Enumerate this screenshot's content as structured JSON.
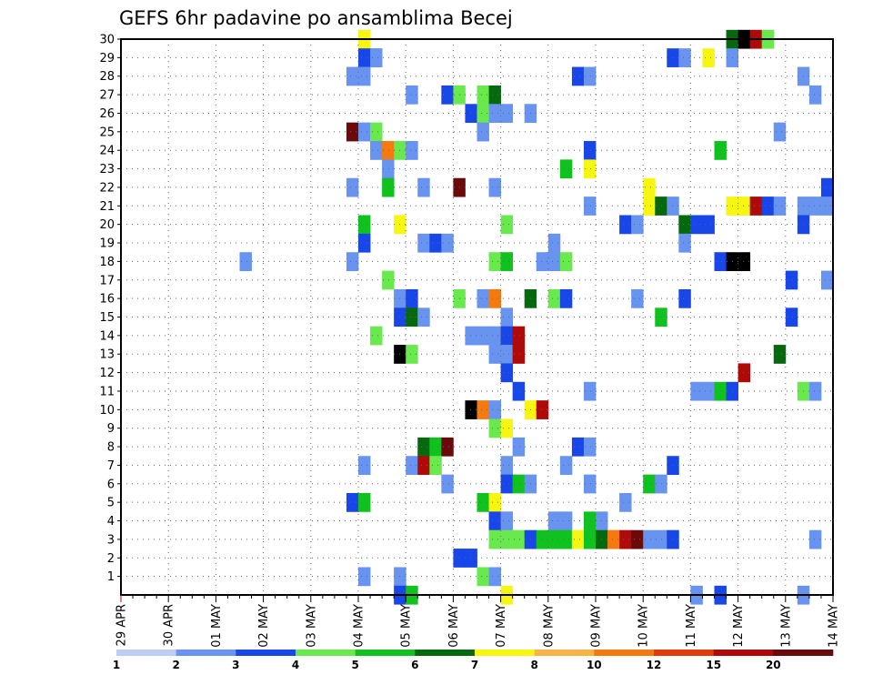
{
  "chart_data": {
    "type": "heatmap",
    "title": "GEFS 6hr padavine po ansamblima Becej",
    "x_labels": [
      "29 APR",
      "30 APR",
      "01 MAY",
      "02 MAY",
      "03 MAY",
      "04 MAY",
      "05 MAY",
      "06 MAY",
      "07 MAY",
      "08 MAY",
      "09 MAY",
      "10 MAY",
      "11 MAY",
      "12 MAY",
      "13 MAY",
      "14 MAY"
    ],
    "y_labels": [
      "1",
      "2",
      "3",
      "4",
      "5",
      "6",
      "7",
      "8",
      "9",
      "10",
      "11",
      "12",
      "13",
      "14",
      "15",
      "16",
      "17",
      "18",
      "19",
      "20",
      "21",
      "22",
      "23",
      "24",
      "25",
      "26",
      "27",
      "28",
      "29",
      "30"
    ],
    "x_unit": "6-hour steps from 29 APR 00Z",
    "xlim": [
      0,
      60
    ],
    "ylim": [
      0,
      30
    ],
    "grid": true,
    "colorbar": {
      "levels": [
        1,
        2,
        3,
        4,
        5,
        6,
        7,
        8,
        10,
        12,
        15,
        20
      ],
      "colors": [
        "#bdcdf6",
        "#6893ee",
        "#1946e6",
        "#6ae94f",
        "#11c120",
        "#06680f",
        "#f6f612",
        "#f6b445",
        "#f57911",
        "#e03a0e",
        "#ae0a0a",
        "#6a0a0a"
      ]
    },
    "cells": [
      [
        20,
        30,
        6
      ],
      [
        21,
        29,
        1
      ],
      [
        51,
        30,
        5
      ],
      [
        52,
        30,
        12
      ],
      [
        53,
        30,
        10
      ],
      [
        54,
        30,
        3
      ],
      [
        20,
        29,
        2
      ],
      [
        21,
        29,
        1
      ],
      [
        46,
        29,
        2
      ],
      [
        47,
        29,
        1
      ],
      [
        49,
        29,
        6
      ],
      [
        51,
        29,
        1
      ],
      [
        19,
        28,
        1
      ],
      [
        20,
        28,
        1
      ],
      [
        38,
        28,
        2
      ],
      [
        39,
        28,
        1
      ],
      [
        57,
        28,
        1
      ],
      [
        24,
        27,
        1
      ],
      [
        27,
        27,
        2
      ],
      [
        28,
        27,
        3
      ],
      [
        30,
        27,
        3
      ],
      [
        31,
        27,
        5
      ],
      [
        58,
        27,
        1
      ],
      [
        29,
        26,
        2
      ],
      [
        30,
        26,
        3
      ],
      [
        31,
        26,
        1
      ],
      [
        32,
        26,
        1
      ],
      [
        34,
        26,
        1
      ],
      [
        19,
        25,
        11
      ],
      [
        20,
        25,
        1
      ],
      [
        21,
        25,
        3
      ],
      [
        30,
        25,
        1
      ],
      [
        55,
        25,
        1
      ],
      [
        21,
        24,
        1
      ],
      [
        22,
        24,
        8
      ],
      [
        23,
        24,
        3
      ],
      [
        24,
        24,
        1
      ],
      [
        39,
        24,
        2
      ],
      [
        50,
        24,
        4
      ],
      [
        22,
        23,
        1
      ],
      [
        37,
        23,
        4
      ],
      [
        39,
        23,
        6
      ],
      [
        19,
        22,
        1
      ],
      [
        22,
        22,
        4
      ],
      [
        25,
        22,
        1
      ],
      [
        28,
        22,
        11
      ],
      [
        31,
        22,
        1
      ],
      [
        44,
        22,
        6
      ],
      [
        59,
        22,
        2
      ],
      [
        39,
        21,
        1
      ],
      [
        44,
        21,
        6
      ],
      [
        45,
        21,
        5
      ],
      [
        46,
        21,
        1
      ],
      [
        51,
        21,
        6
      ],
      [
        52,
        21,
        6
      ],
      [
        53,
        21,
        10
      ],
      [
        54,
        21,
        2
      ],
      [
        55,
        21,
        1
      ],
      [
        57,
        21,
        1
      ],
      [
        58,
        21,
        1
      ],
      [
        59,
        21,
        1
      ],
      [
        20,
        20,
        4
      ],
      [
        23,
        20,
        6
      ],
      [
        32,
        20,
        3
      ],
      [
        42,
        20,
        2
      ],
      [
        43,
        20,
        1
      ],
      [
        47,
        20,
        5
      ],
      [
        48,
        20,
        2
      ],
      [
        49,
        20,
        2
      ],
      [
        57,
        20,
        2
      ],
      [
        20,
        19,
        2
      ],
      [
        25,
        19,
        1
      ],
      [
        26,
        19,
        2
      ],
      [
        27,
        19,
        1
      ],
      [
        36,
        19,
        1
      ],
      [
        47,
        19,
        1
      ],
      [
        10,
        18,
        1
      ],
      [
        19,
        18,
        1
      ],
      [
        31,
        18,
        3
      ],
      [
        32,
        18,
        4
      ],
      [
        35,
        18,
        1
      ],
      [
        36,
        18,
        1
      ],
      [
        37,
        18,
        3
      ],
      [
        50,
        18,
        2
      ],
      [
        51,
        18,
        13
      ],
      [
        52,
        18,
        14
      ],
      [
        22,
        17,
        3
      ],
      [
        56,
        17,
        2
      ],
      [
        59,
        17,
        1
      ],
      [
        23,
        16,
        1
      ],
      [
        24,
        16,
        2
      ],
      [
        28,
        16,
        3
      ],
      [
        30,
        16,
        1
      ],
      [
        31,
        16,
        8
      ],
      [
        34,
        16,
        5
      ],
      [
        36,
        16,
        3
      ],
      [
        37,
        16,
        2
      ],
      [
        43,
        16,
        1
      ],
      [
        47,
        16,
        2
      ],
      [
        23,
        15,
        2
      ],
      [
        24,
        15,
        5
      ],
      [
        25,
        15,
        1
      ],
      [
        32,
        15,
        1
      ],
      [
        45,
        15,
        4
      ],
      [
        56,
        15,
        2
      ],
      [
        21,
        14,
        3
      ],
      [
        29,
        14,
        1
      ],
      [
        30,
        14,
        1
      ],
      [
        31,
        14,
        1
      ],
      [
        32,
        14,
        2
      ],
      [
        33,
        14,
        10
      ],
      [
        23,
        13,
        14
      ],
      [
        24,
        13,
        3
      ],
      [
        31,
        13,
        1
      ],
      [
        32,
        13,
        1
      ],
      [
        33,
        13,
        10
      ],
      [
        55,
        13,
        5
      ],
      [
        32,
        12,
        2
      ],
      [
        52,
        12,
        10
      ],
      [
        33,
        11,
        2
      ],
      [
        39,
        11,
        1
      ],
      [
        48,
        11,
        1
      ],
      [
        49,
        11,
        1
      ],
      [
        50,
        11,
        4
      ],
      [
        51,
        11,
        2
      ],
      [
        57,
        11,
        3
      ],
      [
        58,
        11,
        1
      ],
      [
        29,
        10,
        12
      ],
      [
        30,
        10,
        8
      ],
      [
        31,
        10,
        1
      ],
      [
        34,
        10,
        6
      ],
      [
        35,
        10,
        10
      ],
      [
        31,
        9,
        3
      ],
      [
        32,
        9,
        6
      ],
      [
        25,
        8,
        5
      ],
      [
        26,
        8,
        4
      ],
      [
        27,
        8,
        11
      ],
      [
        33,
        8,
        1
      ],
      [
        38,
        8,
        2
      ],
      [
        39,
        8,
        1
      ],
      [
        20,
        7,
        1
      ],
      [
        24,
        7,
        1
      ],
      [
        25,
        7,
        10
      ],
      [
        26,
        7,
        3
      ],
      [
        32,
        7,
        1
      ],
      [
        37,
        7,
        1
      ],
      [
        46,
        7,
        2
      ],
      [
        27,
        6,
        1
      ],
      [
        32,
        6,
        2
      ],
      [
        33,
        6,
        4
      ],
      [
        34,
        6,
        1
      ],
      [
        39,
        6,
        1
      ],
      [
        44,
        6,
        4
      ],
      [
        45,
        6,
        1
      ],
      [
        19,
        5,
        2
      ],
      [
        20,
        5,
        4
      ],
      [
        30,
        5,
        4
      ],
      [
        31,
        5,
        6
      ],
      [
        42,
        5,
        1
      ],
      [
        31,
        4,
        2
      ],
      [
        32,
        4,
        1
      ],
      [
        36,
        4,
        1
      ],
      [
        37,
        4,
        1
      ],
      [
        39,
        4,
        4
      ],
      [
        40,
        4,
        1
      ],
      [
        31,
        3,
        3
      ],
      [
        32,
        3,
        3
      ],
      [
        33,
        3,
        3
      ],
      [
        34,
        3,
        2
      ],
      [
        35,
        3,
        4
      ],
      [
        36,
        3,
        4
      ],
      [
        37,
        3,
        4
      ],
      [
        38,
        3,
        6
      ],
      [
        39,
        3,
        4
      ],
      [
        40,
        3,
        5
      ],
      [
        41,
        3,
        8
      ],
      [
        42,
        3,
        10
      ],
      [
        43,
        3,
        11
      ],
      [
        44,
        3,
        1
      ],
      [
        45,
        3,
        1
      ],
      [
        46,
        3,
        2
      ],
      [
        58,
        3,
        1
      ],
      [
        28,
        2,
        2
      ],
      [
        29,
        2,
        2
      ],
      [
        20,
        1,
        1
      ],
      [
        23,
        1,
        1
      ],
      [
        30,
        1,
        3
      ],
      [
        31,
        1,
        1
      ],
      [
        23,
        0,
        2
      ],
      [
        24,
        0,
        4
      ],
      [
        32,
        0,
        6
      ],
      [
        48,
        0,
        1
      ],
      [
        50,
        0,
        2
      ],
      [
        57,
        0,
        1
      ]
    ]
  }
}
